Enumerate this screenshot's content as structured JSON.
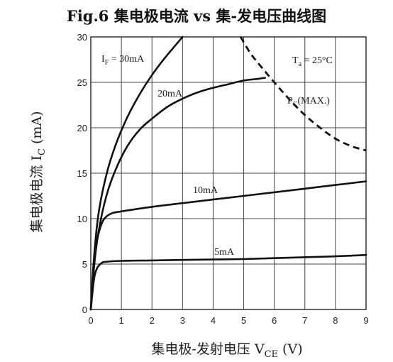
{
  "chart_data": {
    "type": "line",
    "title": "Fig.6 集电极电流 vs 集-发电压曲线图",
    "xlabel": "集电极-发射电压 V",
    "xlabel_sub": "CE",
    "xlabel_unit": " (V)",
    "ylabel": "集电极电流 I",
    "ylabel_sub": "C",
    "ylabel_unit": " (mA)",
    "xlim": [
      0,
      9
    ],
    "ylim": [
      0,
      30
    ],
    "x_ticks": [
      "0",
      "1",
      "2",
      "3",
      "4",
      "5",
      "6",
      "7",
      "8",
      "9"
    ],
    "y_ticks": [
      "0",
      "5",
      "10",
      "15",
      "20",
      "25",
      "30"
    ],
    "grid": true,
    "annotation_ta": "T",
    "annotation_ta_sub": "a",
    "annotation_ta_value": " = 25°C",
    "series": [
      {
        "name": "30mA",
        "label_prefix": "I",
        "label_sub": "F",
        "label_value": " = 30mA",
        "style": "solid",
        "x": [
          0,
          0.1,
          0.25,
          0.5,
          0.8,
          1.2,
          1.6,
          2.0,
          2.4,
          2.8,
          3.0
        ],
        "y": [
          0,
          5.5,
          10.5,
          14.7,
          18.0,
          21.2,
          23.7,
          25.8,
          27.6,
          29.2,
          30.0
        ]
      },
      {
        "name": "20mA",
        "label_prefix": "",
        "label_sub": "",
        "label_value": "20mA",
        "style": "solid",
        "x": [
          0,
          0.1,
          0.25,
          0.5,
          0.8,
          1.2,
          1.6,
          2.0,
          2.5,
          3.0,
          3.5,
          4.0,
          4.5,
          5.0,
          5.5,
          5.7
        ],
        "y": [
          0,
          4.5,
          8.5,
          12.4,
          15.3,
          18.0,
          19.8,
          21.0,
          22.3,
          23.2,
          23.9,
          24.4,
          24.8,
          25.2,
          25.4,
          25.5
        ]
      },
      {
        "name": "10mA",
        "label_prefix": "",
        "label_sub": "",
        "label_value": "10mA",
        "style": "solid",
        "x": [
          0,
          0.1,
          0.2,
          0.35,
          0.5,
          0.7,
          1.0,
          2.0,
          3.0,
          4.0,
          5.0,
          6.0,
          7.0,
          8.0,
          9.0
        ],
        "y": [
          0,
          4.5,
          7.5,
          9.4,
          10.2,
          10.6,
          10.8,
          11.3,
          11.7,
          12.1,
          12.5,
          12.9,
          13.3,
          13.7,
          14.1
        ]
      },
      {
        "name": "5mA",
        "label_prefix": "",
        "label_sub": "",
        "label_value": "5mA",
        "style": "solid",
        "x": [
          0,
          0.1,
          0.2,
          0.35,
          0.5,
          1.0,
          2.0,
          3.0,
          4.0,
          5.0,
          6.0,
          7.0,
          8.0,
          9.0
        ],
        "y": [
          0,
          3.2,
          4.5,
          5.1,
          5.25,
          5.35,
          5.4,
          5.45,
          5.5,
          5.55,
          5.65,
          5.75,
          5.85,
          6.0
        ]
      },
      {
        "name": "MAX.",
        "label_prefix": "P",
        "label_sub": "C",
        "label_value": "(MAX.)",
        "style": "dashed",
        "x": [
          4.9,
          5.2,
          5.5,
          6.0,
          6.5,
          7.0,
          7.5,
          8.0,
          8.5,
          9.0
        ],
        "y": [
          30.0,
          28.3,
          27.0,
          25.0,
          23.1,
          21.4,
          20.0,
          18.8,
          18.0,
          17.5
        ]
      }
    ]
  }
}
